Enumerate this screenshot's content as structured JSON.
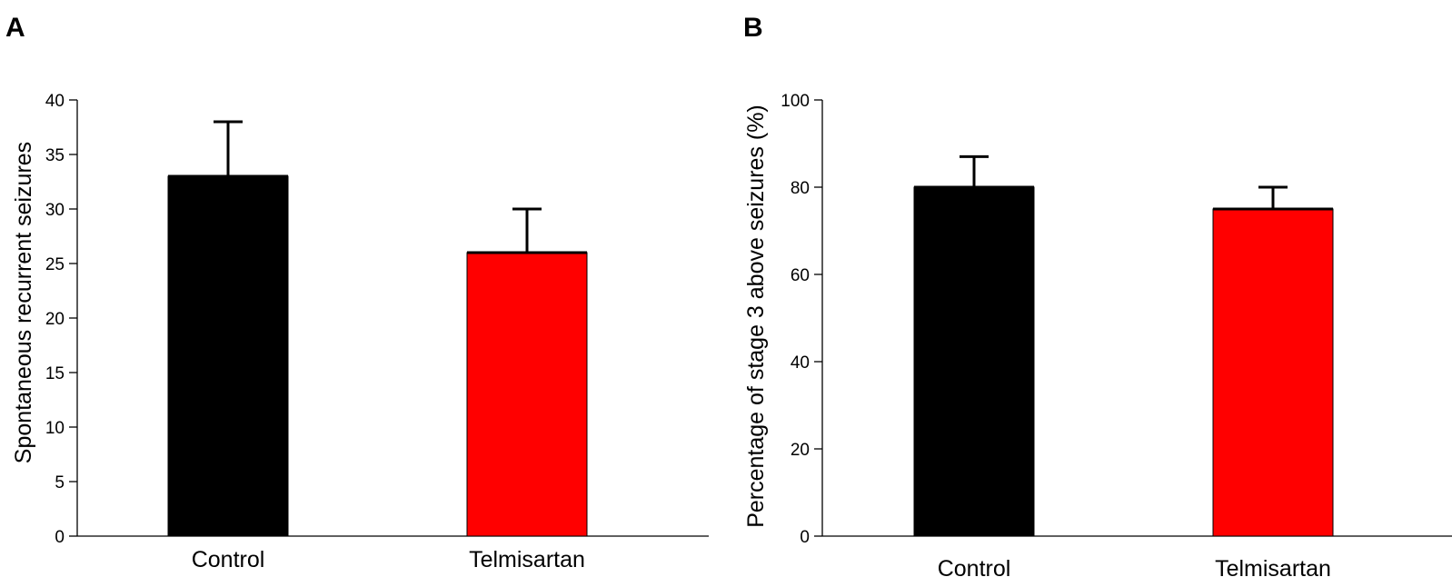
{
  "chart_data": [
    {
      "panel": "A",
      "type": "bar",
      "title": "",
      "xlabel": "",
      "ylabel": "Spontaneous recurrent seizures",
      "ylim": [
        0,
        40
      ],
      "yticks": [
        0,
        5,
        10,
        15,
        20,
        25,
        30,
        35,
        40
      ],
      "categories": [
        "Control",
        "Telmisartan"
      ],
      "values": [
        33,
        26
      ],
      "errors": [
        5,
        4
      ],
      "colors": [
        "#000000",
        "#ff0000"
      ],
      "grid": false,
      "legend": "none"
    },
    {
      "panel": "B",
      "type": "bar",
      "title": "",
      "xlabel": "",
      "ylabel": "Percentage of stage 3 above seizures (%)",
      "ylim": [
        0,
        100
      ],
      "yticks": [
        0,
        20,
        40,
        60,
        80,
        100
      ],
      "categories": [
        "Control",
        "Telmisartan"
      ],
      "values": [
        80,
        75
      ],
      "errors": [
        7,
        5
      ],
      "colors": [
        "#000000",
        "#ff0000"
      ],
      "grid": false,
      "legend": "none"
    }
  ]
}
